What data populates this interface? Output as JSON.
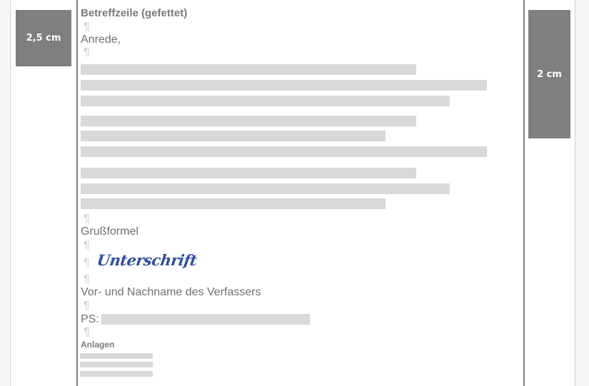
{
  "margins": {
    "left_label": "2,5 cm",
    "right_label": "2 cm"
  },
  "letter": {
    "subject": "Betreffzeile (gefettet)",
    "salutation": "Anrede,",
    "closing": "Grußformel",
    "signature": "Unterschrift",
    "author": "Vor- und Nachname des Verfassers",
    "ps_label": "PS:",
    "attachments_label": "Anlagen",
    "paragraph_mark": "¶"
  },
  "colors": {
    "margin_box": "#7f7f7f",
    "placeholder_bar": "#d9d9d9",
    "signature": "#2e4f9a"
  }
}
